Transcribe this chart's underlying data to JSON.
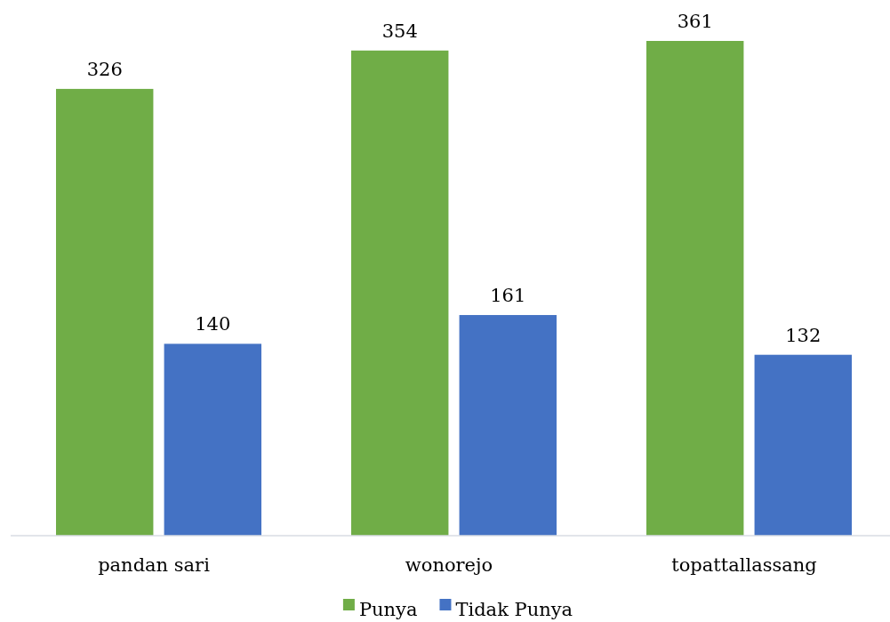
{
  "chart_data": {
    "type": "bar",
    "categories": [
      "pandan sari",
      "wonorejo",
      "topattallassang"
    ],
    "series": [
      {
        "name": "Punya",
        "color": "#70ad47",
        "values": [
          326,
          354,
          361
        ]
      },
      {
        "name": "Tidak Punya",
        "color": "#4472c4",
        "values": [
          140,
          161,
          132
        ]
      }
    ],
    "data_labels": true,
    "legend": "bottom"
  }
}
